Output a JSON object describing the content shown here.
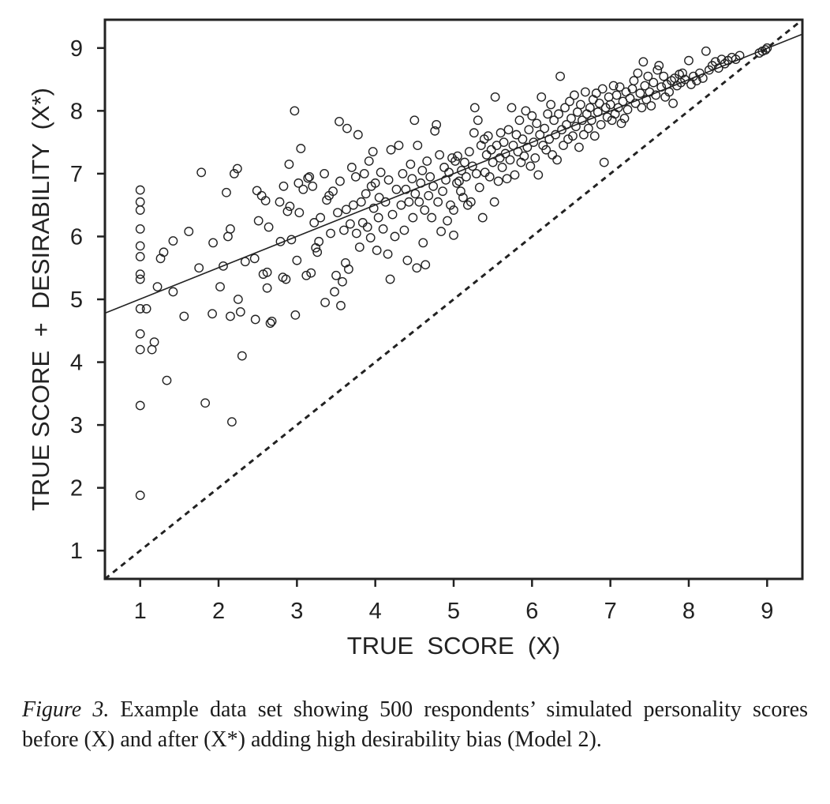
{
  "chart_data": {
    "type": "scatter",
    "xlabel": "TRUE  SCORE  (X)",
    "ylabel": "TRUE SCORE  +  DESIRABILITY  (X*)",
    "xlim": [
      0.55,
      9.45
    ],
    "ylim": [
      0.55,
      9.45
    ],
    "xticks": [
      1,
      2,
      3,
      4,
      5,
      6,
      7,
      8,
      9
    ],
    "yticks": [
      1,
      2,
      3,
      4,
      5,
      6,
      7,
      8,
      9
    ],
    "grid": false,
    "legend": "none",
    "reference_line": {
      "style": "dashed",
      "from": [
        0.55,
        0.55
      ],
      "to": [
        9.45,
        9.45
      ]
    },
    "regression_line": {
      "style": "solid",
      "from": [
        0.55,
        4.78
      ],
      "to": [
        9.45,
        9.22
      ]
    },
    "points": [
      [
        1.0,
        1.88
      ],
      [
        1.0,
        3.31
      ],
      [
        1.0,
        4.2
      ],
      [
        1.0,
        4.45
      ],
      [
        1.0,
        4.85
      ],
      [
        1.0,
        5.32
      ],
      [
        1.0,
        5.4
      ],
      [
        1.0,
        5.68
      ],
      [
        1.0,
        5.85
      ],
      [
        1.0,
        6.12
      ],
      [
        1.0,
        6.42
      ],
      [
        1.0,
        6.55
      ],
      [
        1.0,
        6.74
      ],
      [
        1.08,
        4.85
      ],
      [
        1.15,
        4.2
      ],
      [
        1.18,
        4.32
      ],
      [
        1.22,
        5.2
      ],
      [
        1.26,
        5.65
      ],
      [
        1.3,
        5.75
      ],
      [
        1.34,
        3.71
      ],
      [
        1.42,
        5.12
      ],
      [
        1.42,
        5.93
      ],
      [
        1.56,
        4.73
      ],
      [
        1.62,
        6.08
      ],
      [
        1.75,
        5.5
      ],
      [
        1.78,
        7.02
      ],
      [
        1.83,
        3.35
      ],
      [
        1.92,
        4.77
      ],
      [
        1.93,
        5.9
      ],
      [
        2.02,
        5.2
      ],
      [
        2.06,
        5.53
      ],
      [
        2.1,
        6.7
      ],
      [
        2.12,
        6.0
      ],
      [
        2.15,
        4.73
      ],
      [
        2.15,
        6.12
      ],
      [
        2.17,
        3.05
      ],
      [
        2.2,
        7.0
      ],
      [
        2.24,
        7.08
      ],
      [
        2.25,
        5.0
      ],
      [
        2.28,
        4.8
      ],
      [
        2.3,
        4.1
      ],
      [
        2.34,
        5.6
      ],
      [
        2.46,
        5.65
      ],
      [
        2.47,
        4.68
      ],
      [
        2.49,
        6.73
      ],
      [
        2.51,
        6.25
      ],
      [
        2.55,
        6.65
      ],
      [
        2.57,
        5.4
      ],
      [
        2.6,
        6.57
      ],
      [
        2.62,
        5.18
      ],
      [
        2.62,
        5.43
      ],
      [
        2.64,
        6.15
      ],
      [
        2.66,
        4.62
      ],
      [
        2.68,
        4.65
      ],
      [
        2.78,
        6.55
      ],
      [
        2.79,
        5.92
      ],
      [
        2.82,
        5.35
      ],
      [
        2.83,
        6.8
      ],
      [
        2.86,
        5.32
      ],
      [
        2.88,
        6.4
      ],
      [
        2.9,
        7.15
      ],
      [
        2.91,
        6.48
      ],
      [
        2.93,
        5.95
      ],
      [
        2.97,
        8.0
      ],
      [
        2.98,
        4.75
      ],
      [
        3.0,
        5.62
      ],
      [
        3.02,
        6.85
      ],
      [
        3.03,
        6.38
      ],
      [
        3.05,
        7.4
      ],
      [
        3.08,
        6.75
      ],
      [
        3.12,
        5.38
      ],
      [
        3.14,
        6.93
      ],
      [
        3.16,
        6.95
      ],
      [
        3.18,
        5.42
      ],
      [
        3.2,
        6.8
      ],
      [
        3.22,
        6.22
      ],
      [
        3.24,
        5.82
      ],
      [
        3.26,
        5.75
      ],
      [
        3.28,
        5.92
      ],
      [
        3.3,
        6.3
      ],
      [
        3.35,
        7.0
      ],
      [
        3.36,
        4.95
      ],
      [
        3.38,
        6.58
      ],
      [
        3.41,
        6.65
      ],
      [
        3.43,
        6.05
      ],
      [
        3.46,
        6.72
      ],
      [
        3.48,
        5.12
      ],
      [
        3.5,
        5.38
      ],
      [
        3.52,
        6.38
      ],
      [
        3.54,
        7.83
      ],
      [
        3.55,
        6.88
      ],
      [
        3.56,
        4.9
      ],
      [
        3.58,
        5.28
      ],
      [
        3.6,
        6.1
      ],
      [
        3.62,
        5.58
      ],
      [
        3.63,
        6.43
      ],
      [
        3.64,
        7.72
      ],
      [
        3.66,
        5.48
      ],
      [
        3.68,
        6.2
      ],
      [
        3.7,
        7.1
      ],
      [
        3.72,
        6.5
      ],
      [
        3.75,
        6.95
      ],
      [
        3.76,
        6.05
      ],
      [
        3.78,
        7.62
      ],
      [
        3.8,
        5.83
      ],
      [
        3.82,
        6.55
      ],
      [
        3.84,
        6.22
      ],
      [
        3.86,
        7.0
      ],
      [
        3.88,
        6.68
      ],
      [
        3.9,
        6.15
      ],
      [
        3.92,
        7.2
      ],
      [
        3.94,
        5.98
      ],
      [
        3.95,
        6.8
      ],
      [
        3.97,
        7.35
      ],
      [
        3.98,
        6.45
      ],
      [
        4.0,
        6.85
      ],
      [
        4.02,
        5.78
      ],
      [
        4.04,
        6.3
      ],
      [
        4.05,
        6.62
      ],
      [
        4.07,
        7.02
      ],
      [
        4.1,
        6.12
      ],
      [
        4.13,
        6.55
      ],
      [
        4.16,
        5.72
      ],
      [
        4.17,
        6.9
      ],
      [
        4.19,
        5.32
      ],
      [
        4.2,
        7.38
      ],
      [
        4.22,
        6.35
      ],
      [
        4.25,
        6.0
      ],
      [
        4.27,
        6.75
      ],
      [
        4.3,
        7.45
      ],
      [
        4.33,
        6.5
      ],
      [
        4.35,
        7.0
      ],
      [
        4.37,
        6.1
      ],
      [
        4.39,
        6.75
      ],
      [
        4.41,
        5.62
      ],
      [
        4.43,
        6.55
      ],
      [
        4.45,
        7.15
      ],
      [
        4.47,
        6.92
      ],
      [
        4.48,
        6.3
      ],
      [
        4.5,
        7.85
      ],
      [
        4.51,
        6.68
      ],
      [
        4.53,
        5.5
      ],
      [
        4.54,
        7.45
      ],
      [
        4.56,
        6.55
      ],
      [
        4.58,
        6.85
      ],
      [
        4.6,
        7.05
      ],
      [
        4.61,
        5.9
      ],
      [
        4.63,
        6.42
      ],
      [
        4.64,
        5.55
      ],
      [
        4.66,
        7.2
      ],
      [
        4.68,
        6.65
      ],
      [
        4.7,
        6.95
      ],
      [
        4.72,
        6.3
      ],
      [
        4.74,
        6.8
      ],
      [
        4.76,
        7.68
      ],
      [
        4.78,
        7.78
      ],
      [
        4.8,
        6.55
      ],
      [
        4.82,
        7.3
      ],
      [
        4.84,
        6.08
      ],
      [
        4.86,
        6.72
      ],
      [
        4.88,
        7.1
      ],
      [
        4.9,
        6.9
      ],
      [
        4.92,
        6.25
      ],
      [
        4.94,
        7.02
      ],
      [
        4.96,
        6.5
      ],
      [
        4.98,
        7.25
      ],
      [
        5.0,
        6.02
      ],
      [
        5.0,
        6.42
      ],
      [
        5.02,
        7.2
      ],
      [
        5.04,
        6.85
      ],
      [
        5.05,
        7.28
      ],
      [
        5.07,
        6.88
      ],
      [
        5.09,
        6.72
      ],
      [
        5.1,
        7.05
      ],
      [
        5.12,
        6.62
      ],
      [
        5.14,
        7.18
      ],
      [
        5.16,
        6.95
      ],
      [
        5.18,
        6.5
      ],
      [
        5.2,
        7.35
      ],
      [
        5.22,
        6.55
      ],
      [
        5.24,
        7.12
      ],
      [
        5.26,
        7.65
      ],
      [
        5.27,
        8.05
      ],
      [
        5.29,
        7.0
      ],
      [
        5.31,
        7.85
      ],
      [
        5.33,
        6.78
      ],
      [
        5.35,
        7.45
      ],
      [
        5.37,
        6.3
      ],
      [
        5.39,
        7.55
      ],
      [
        5.4,
        7.02
      ],
      [
        5.42,
        7.3
      ],
      [
        5.44,
        7.6
      ],
      [
        5.46,
        6.95
      ],
      [
        5.48,
        7.38
      ],
      [
        5.5,
        7.18
      ],
      [
        5.52,
        6.55
      ],
      [
        5.53,
        8.22
      ],
      [
        5.55,
        7.45
      ],
      [
        5.57,
        6.88
      ],
      [
        5.59,
        7.25
      ],
      [
        5.6,
        7.65
      ],
      [
        5.62,
        7.1
      ],
      [
        5.64,
        7.5
      ],
      [
        5.66,
        7.32
      ],
      [
        5.68,
        6.92
      ],
      [
        5.7,
        7.7
      ],
      [
        5.72,
        7.22
      ],
      [
        5.74,
        8.05
      ],
      [
        5.76,
        7.45
      ],
      [
        5.78,
        6.98
      ],
      [
        5.8,
        7.62
      ],
      [
        5.82,
        7.35
      ],
      [
        5.84,
        7.85
      ],
      [
        5.86,
        7.18
      ],
      [
        5.88,
        7.55
      ],
      [
        5.9,
        7.28
      ],
      [
        5.92,
        8.0
      ],
      [
        5.94,
        7.42
      ],
      [
        5.96,
        7.7
      ],
      [
        5.98,
        7.12
      ],
      [
        6.0,
        7.92
      ],
      [
        6.02,
        7.5
      ],
      [
        6.04,
        7.25
      ],
      [
        6.06,
        7.8
      ],
      [
        6.08,
        6.98
      ],
      [
        6.1,
        7.62
      ],
      [
        6.12,
        8.22
      ],
      [
        6.14,
        7.45
      ],
      [
        6.16,
        7.72
      ],
      [
        6.18,
        7.38
      ],
      [
        6.2,
        7.95
      ],
      [
        6.22,
        7.55
      ],
      [
        6.24,
        8.1
      ],
      [
        6.26,
        7.3
      ],
      [
        6.28,
        7.85
      ],
      [
        6.3,
        7.62
      ],
      [
        6.32,
        7.22
      ],
      [
        6.34,
        7.95
      ],
      [
        6.36,
        8.55
      ],
      [
        6.38,
        7.7
      ],
      [
        6.4,
        7.45
      ],
      [
        6.42,
        8.05
      ],
      [
        6.44,
        7.78
      ],
      [
        6.46,
        7.55
      ],
      [
        6.48,
        8.15
      ],
      [
        6.5,
        7.88
      ],
      [
        6.52,
        7.6
      ],
      [
        6.54,
        8.25
      ],
      [
        6.56,
        7.75
      ],
      [
        6.58,
        7.98
      ],
      [
        6.6,
        7.42
      ],
      [
        6.62,
        8.1
      ],
      [
        6.64,
        7.85
      ],
      [
        6.66,
        7.62
      ],
      [
        6.68,
        8.3
      ],
      [
        6.7,
        7.95
      ],
      [
        6.72,
        7.72
      ],
      [
        6.74,
        8.05
      ],
      [
        6.76,
        7.85
      ],
      [
        6.78,
        8.18
      ],
      [
        6.8,
        7.6
      ],
      [
        6.82,
        8.28
      ],
      [
        6.84,
        7.98
      ],
      [
        6.86,
        8.12
      ],
      [
        6.88,
        7.78
      ],
      [
        6.9,
        8.35
      ],
      [
        6.92,
        7.18
      ],
      [
        6.94,
        8.05
      ],
      [
        6.96,
        7.9
      ],
      [
        6.98,
        8.22
      ],
      [
        7.0,
        8.1
      ],
      [
        7.02,
        7.85
      ],
      [
        7.04,
        8.4
      ],
      [
        7.06,
        7.95
      ],
      [
        7.08,
        8.25
      ],
      [
        7.1,
        8.05
      ],
      [
        7.12,
        8.38
      ],
      [
        7.14,
        7.8
      ],
      [
        7.16,
        8.15
      ],
      [
        7.18,
        7.88
      ],
      [
        7.2,
        8.3
      ],
      [
        7.22,
        8.02
      ],
      [
        7.25,
        8.2
      ],
      [
        7.28,
        8.35
      ],
      [
        7.3,
        8.48
      ],
      [
        7.32,
        8.12
      ],
      [
        7.35,
        8.6
      ],
      [
        7.38,
        8.28
      ],
      [
        7.4,
        8.05
      ],
      [
        7.42,
        8.78
      ],
      [
        7.44,
        8.4
      ],
      [
        7.46,
        8.18
      ],
      [
        7.48,
        8.55
      ],
      [
        7.5,
        8.3
      ],
      [
        7.52,
        8.08
      ],
      [
        7.55,
        8.45
      ],
      [
        7.58,
        8.25
      ],
      [
        7.6,
        8.65
      ],
      [
        7.62,
        8.72
      ],
      [
        7.65,
        8.38
      ],
      [
        7.68,
        8.55
      ],
      [
        7.7,
        8.22
      ],
      [
        7.72,
        8.42
      ],
      [
        7.75,
        8.3
      ],
      [
        7.78,
        8.48
      ],
      [
        7.8,
        8.12
      ],
      [
        7.82,
        8.52
      ],
      [
        7.85,
        8.4
      ],
      [
        7.88,
        8.58
      ],
      [
        7.9,
        8.45
      ],
      [
        7.92,
        8.6
      ],
      [
        7.95,
        8.5
      ],
      [
        8.0,
        8.8
      ],
      [
        8.03,
        8.42
      ],
      [
        8.06,
        8.55
      ],
      [
        8.1,
        8.48
      ],
      [
        8.14,
        8.6
      ],
      [
        8.18,
        8.52
      ],
      [
        8.22,
        8.95
      ],
      [
        8.26,
        8.65
      ],
      [
        8.3,
        8.72
      ],
      [
        8.34,
        8.78
      ],
      [
        8.38,
        8.68
      ],
      [
        8.42,
        8.82
      ],
      [
        8.46,
        8.75
      ],
      [
        8.5,
        8.8
      ],
      [
        8.55,
        8.85
      ],
      [
        8.6,
        8.82
      ],
      [
        8.65,
        8.88
      ],
      [
        8.9,
        8.92
      ],
      [
        8.94,
        8.95
      ],
      [
        8.98,
        8.97
      ],
      [
        9.0,
        9.0
      ]
    ]
  },
  "caption": {
    "label": "Figure 3.",
    "text": "Example data set showing 500 respondents’ simulated personality scores before (X) and after (X*) adding high desirability bias (Model 2)."
  }
}
